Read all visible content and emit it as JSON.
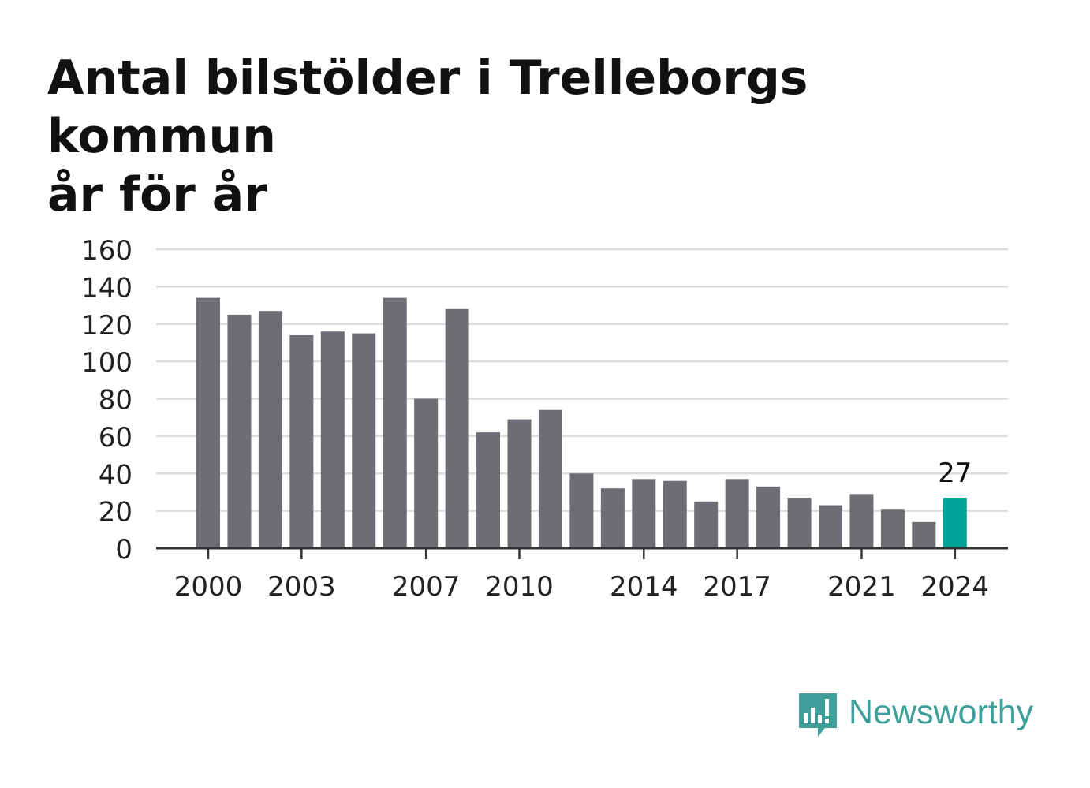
{
  "title_line1": "Antal bilstölder i Trelleborgs kommun",
  "title_line2": "år för år",
  "brand": {
    "name": "Newsworthy",
    "icon": "newsworthy-logo-icon",
    "color": "#3f9f9a"
  },
  "colors": {
    "bar": "#6e6d73",
    "highlight": "#00a398",
    "grid": "#dddddd",
    "axis": "#333333",
    "text": "#222222"
  },
  "chart_data": {
    "type": "bar",
    "categories": [
      2000,
      2001,
      2002,
      2003,
      2004,
      2005,
      2006,
      2007,
      2008,
      2009,
      2010,
      2011,
      2012,
      2013,
      2014,
      2015,
      2016,
      2017,
      2018,
      2019,
      2020,
      2021,
      2022,
      2023,
      2024
    ],
    "values": [
      134,
      125,
      127,
      114,
      116,
      115,
      134,
      80,
      128,
      62,
      69,
      74,
      40,
      32,
      37,
      36,
      25,
      37,
      33,
      27,
      23,
      29,
      21,
      14,
      27
    ],
    "x_tick_labels": [
      "2000",
      "2003",
      "2007",
      "2010",
      "2014",
      "2017",
      "2021",
      "2024"
    ],
    "y_ticks": [
      0,
      20,
      40,
      60,
      80,
      100,
      120,
      140,
      160
    ],
    "ylim": [
      0,
      160
    ],
    "highlight_index": 24,
    "highlight_label": "27",
    "grid": true
  }
}
